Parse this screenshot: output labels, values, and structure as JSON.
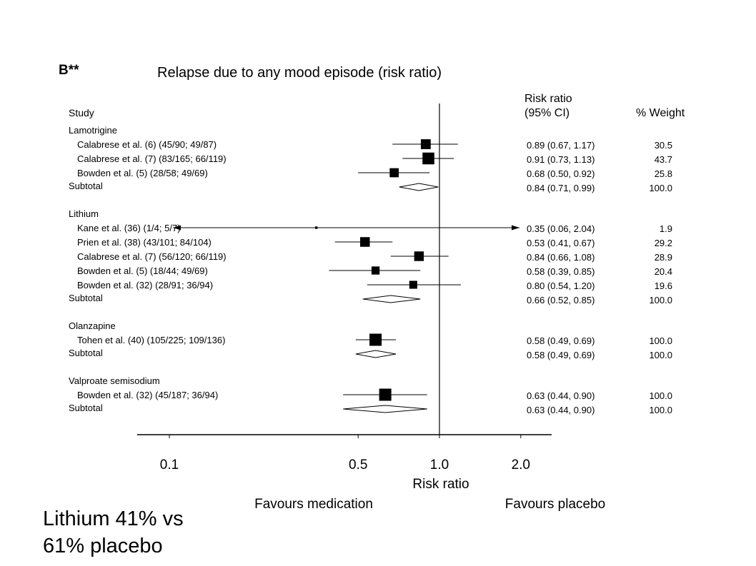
{
  "panel_label": "B**",
  "caption": [
    "Lithium 41% vs",
    "61% placebo"
  ],
  "chart_data": {
    "type": "forest",
    "title": "Relapse due to any mood episode (risk ratio)",
    "headers": {
      "study": "Study",
      "rr_line1": "Risk ratio",
      "rr_line2": "(95% CI)",
      "weight": "% Weight"
    },
    "xlabel": "Risk ratio",
    "x_scale": "log",
    "xlim": [
      0.075,
      3.0
    ],
    "xticks": [
      0.1,
      0.5,
      1.0,
      2.0
    ],
    "xtick_labels": [
      "0.1",
      "0.5",
      "1.0",
      "2.0"
    ],
    "reference_line": 1.0,
    "favours_left": "Favours medication",
    "favours_right": "Favours placebo",
    "groups": [
      {
        "name": "Lamotrigine",
        "studies": [
          {
            "label": "Calabrese et al. (6) (45/90; 49/87)",
            "rr": 0.89,
            "lo": 0.67,
            "hi": 1.17,
            "rr_text": "0.89 (0.67, 1.17)",
            "weight": "30.5"
          },
          {
            "label": "Calabrese et al. (7) (83/165; 66/119)",
            "rr": 0.91,
            "lo": 0.73,
            "hi": 1.13,
            "rr_text": "0.91 (0.73, 1.13)",
            "weight": "43.7"
          },
          {
            "label": "Bowden et al. (5) (28/58; 49/69)",
            "rr": 0.68,
            "lo": 0.5,
            "hi": 0.92,
            "rr_text": "0.68 (0.50, 0.92)",
            "weight": "25.8"
          }
        ],
        "subtotal": {
          "label": "Subtotal",
          "rr": 0.84,
          "lo": 0.71,
          "hi": 0.99,
          "rr_text": "0.84 (0.71, 0.99)",
          "weight": "100.0"
        }
      },
      {
        "name": "Lithium",
        "studies": [
          {
            "label": "Kane et al. (36) (1/4; 5/7)",
            "rr": 0.35,
            "lo": 0.06,
            "hi": 2.04,
            "rr_text": "0.35 (0.06, 2.04)",
            "weight": "1.9"
          },
          {
            "label": "Prien et al. (38) (43/101; 84/104)",
            "rr": 0.53,
            "lo": 0.41,
            "hi": 0.67,
            "rr_text": "0.53 (0.41, 0.67)",
            "weight": "29.2"
          },
          {
            "label": "Calabrese et al. (7) (56/120; 66/119)",
            "rr": 0.84,
            "lo": 0.66,
            "hi": 1.08,
            "rr_text": "0.84 (0.66, 1.08)",
            "weight": "28.9"
          },
          {
            "label": "Bowden et al. (5) (18/44; 49/69)",
            "rr": 0.58,
            "lo": 0.39,
            "hi": 0.85,
            "rr_text": "0.58 (0.39, 0.85)",
            "weight": "20.4"
          },
          {
            "label": "Bowden et al. (32) (28/91; 36/94)",
            "rr": 0.8,
            "lo": 0.54,
            "hi": 1.2,
            "rr_text": "0.80 (0.54, 1.20)",
            "weight": "19.6"
          }
        ],
        "subtotal": {
          "label": "Subtotal",
          "rr": 0.66,
          "lo": 0.52,
          "hi": 0.85,
          "rr_text": "0.66 (0.52, 0.85)",
          "weight": "100.0"
        }
      },
      {
        "name": "Olanzapine",
        "studies": [
          {
            "label": "Tohen et al. (40) (105/225; 109/136)",
            "rr": 0.58,
            "lo": 0.49,
            "hi": 0.69,
            "rr_text": "0.58 (0.49, 0.69)",
            "weight": "100.0"
          }
        ],
        "subtotal": {
          "label": "Subtotal",
          "rr": 0.58,
          "lo": 0.49,
          "hi": 0.69,
          "rr_text": "0.58 (0.49, 0.69)",
          "weight": "100.0"
        }
      },
      {
        "name": "Valproate semisodium",
        "studies": [
          {
            "label": "Bowden et al. (32) (45/187; 36/94)",
            "rr": 0.63,
            "lo": 0.44,
            "hi": 0.9,
            "rr_text": "0.63 (0.44, 0.90)",
            "weight": "100.0"
          }
        ],
        "subtotal": {
          "label": "Subtotal",
          "rr": 0.63,
          "lo": 0.44,
          "hi": 0.9,
          "rr_text": "0.63 (0.44, 0.90)",
          "weight": "100.0"
        }
      }
    ]
  }
}
